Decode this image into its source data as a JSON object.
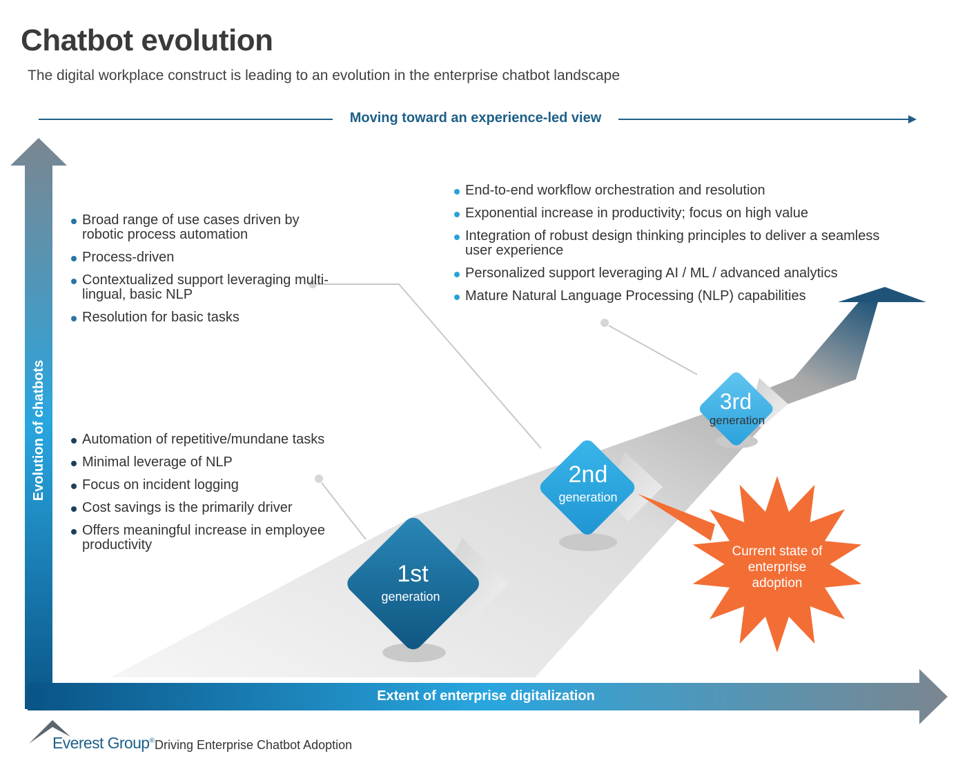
{
  "title": "Chatbot evolution",
  "subtitle": "The digital workplace construct is leading to an evolution in the enterprise chatbot landscape",
  "top_arrow_label": "Moving toward an experience-led view",
  "y_axis_label": "Evolution of chatbots",
  "x_axis_label": "Extent of enterprise digitalization",
  "generations": [
    {
      "number": "1st",
      "word": "generation",
      "bullets": [
        "Automation of  repetitive/mundane tasks",
        "Minimal leverage of NLP",
        "Focus on incident logging",
        "Cost savings is the primarily driver",
        "Offers meaningful increase in employee productivity"
      ]
    },
    {
      "number": "2nd",
      "word": "generation",
      "bullets": [
        "Broad range of use cases driven by robotic process automation",
        "Process-driven",
        "Contextualized support leveraging multi-lingual, basic NLP",
        "Resolution for basic tasks"
      ]
    },
    {
      "number": "3rd",
      "word": "generation",
      "bullets": [
        "End-to-end workflow orchestration and resolution",
        "Exponential increase in productivity; focus on high value",
        "Integration of robust design thinking principles to deliver a seamless user experience",
        "Personalized support leveraging AI / ML / advanced analytics",
        "Mature Natural Language Processing (NLP) capabilities"
      ]
    }
  ],
  "callout": "Current state of enterprise adoption",
  "footer": {
    "brand": "Everest Group",
    "registered_mark": "®",
    "caption": "Driving Enterprise Chatbot Adoption"
  },
  "colors": {
    "gen1": "#1c6d9a",
    "gen2": "#2aa5de",
    "gen3": "#3cb5e8",
    "callout": "#f26e35",
    "title_text": "#3a3a3a",
    "accent_text": "#1d5f88"
  }
}
